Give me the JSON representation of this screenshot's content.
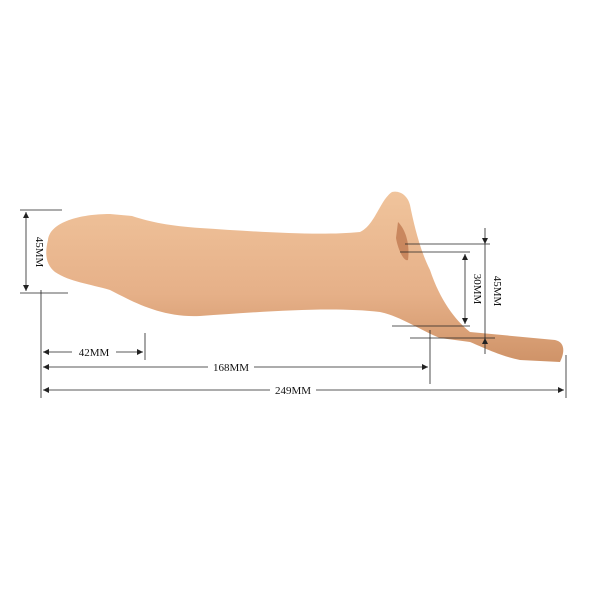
{
  "colors": {
    "product": "#e8b48a",
    "product_shade": "#d49a6e",
    "line": "#222222",
    "background": "#ffffff"
  },
  "dimensions": {
    "left_diameter": "45MM",
    "tip_length": "42MM",
    "insert_length": "168MM",
    "total_length": "249MM",
    "opening_inner": "30MM",
    "opening_outer": "45MM"
  }
}
